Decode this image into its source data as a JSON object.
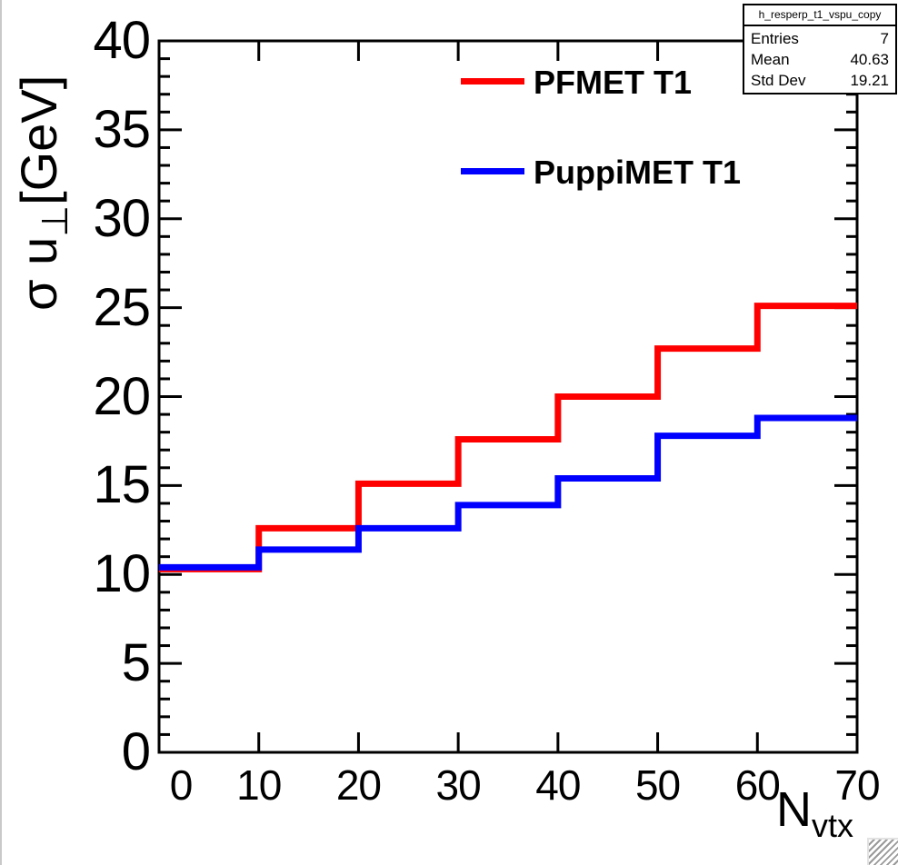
{
  "colors": {
    "pfmet": "#ff0000",
    "puppimet": "#0000ff",
    "frame": "#000000",
    "background": "#ffffff"
  },
  "stats_box": {
    "title": "h_resperp_t1_vspu_copy",
    "rows": [
      {
        "label": "Entries",
        "value": "7"
      },
      {
        "label": "Mean",
        "value": "40.63"
      },
      {
        "label": "Std Dev",
        "value": "19.21"
      }
    ]
  },
  "legend": {
    "items": [
      {
        "label": "PFMET T1",
        "color": "#ff0000"
      },
      {
        "label": "PuppiMET T1",
        "color": "#0000ff"
      }
    ]
  },
  "axes": {
    "y_title_prefix": "σ u",
    "y_title_sub": "⊥",
    "y_title_suffix": "[GeV]",
    "x_title_main": "N",
    "x_title_sub": "vtx",
    "x_tick_labels": [
      "0",
      "10",
      "20",
      "30",
      "40",
      "50",
      "60",
      "70"
    ],
    "y_tick_labels": [
      "0",
      "5",
      "10",
      "15",
      "20",
      "25",
      "30",
      "35",
      "40"
    ]
  },
  "chart_data": {
    "type": "line",
    "subtype": "step-histogram",
    "title": "",
    "xlabel": "N_vtx",
    "ylabel": "σ u⊥ [GeV]",
    "xlim": [
      0,
      70
    ],
    "ylim": [
      0,
      40
    ],
    "x_major_step": 10,
    "y_major_step": 5,
    "y_minor_step": 1,
    "grid": false,
    "legend_position": "top-center",
    "bin_edges": [
      0,
      10,
      20,
      30,
      40,
      50,
      60,
      70
    ],
    "series": [
      {
        "name": "PFMET T1",
        "color": "#ff0000",
        "values": [
          10.3,
          12.6,
          15.1,
          17.6,
          20.0,
          22.7,
          25.1
        ]
      },
      {
        "name": "PuppiMET T1",
        "color": "#0000ff",
        "values": [
          10.4,
          11.4,
          12.6,
          13.9,
          15.4,
          17.8,
          18.8
        ]
      }
    ]
  }
}
